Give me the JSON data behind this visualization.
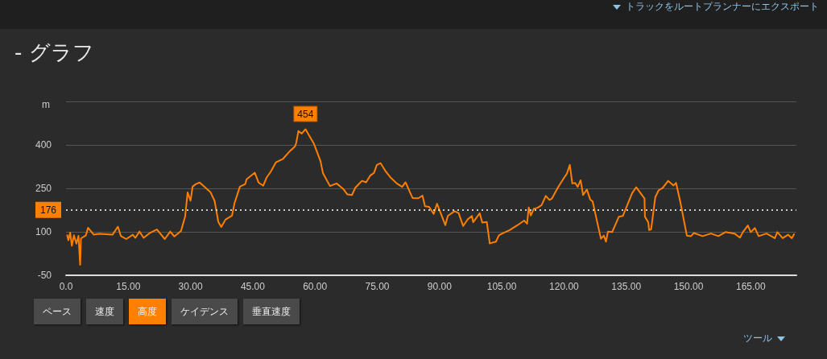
{
  "chart_data": {
    "type": "line",
    "title": "- グラフ",
    "ylabel": "m",
    "annotations": [
      "トラックをルートプランナーにエクスポート",
      "ペース",
      "速度",
      "高度",
      "ケイデンス",
      "垂直速度",
      "ツール",
      {
        "text": "454",
        "x": 57.7,
        "y": 454
      }
    ],
    "x": [
      0.25,
      0.57,
      1.0,
      1.4,
      1.9,
      2.5,
      3.0,
      3.4,
      3.6,
      4.8,
      5.3,
      6.7,
      8.0,
      11.2,
      12.5,
      13.2,
      14.5,
      16.1,
      16.7,
      17.7,
      18.7,
      20.3,
      21.9,
      23.8,
      25.1,
      26.1,
      27.7,
      28.7,
      29.3,
      30.0,
      30.5,
      31.3,
      32.2,
      34.8,
      35.8,
      36.7,
      37.4,
      38.4,
      40.0,
      40.6,
      41.9,
      43.2,
      43.5,
      45.5,
      46.4,
      47.5,
      48.4,
      49.3,
      50.6,
      52.3,
      53.9,
      55.2,
      55.5,
      56.0,
      56.8,
      57.7,
      59.7,
      61.3,
      61.9,
      63.6,
      65.2,
      66.8,
      67.8,
      68.9,
      69.7,
      71.3,
      72.3,
      73.3,
      74.2,
      74.9,
      75.8,
      77.1,
      78.1,
      79.7,
      81.0,
      81.8,
      83.5,
      84.9,
      85.9,
      86.5,
      87.5,
      88.6,
      89.4,
      91.4,
      92.0,
      93.6,
      94.6,
      95.7,
      96.8,
      97.8,
      98.1,
      99.7,
      100.3,
      101.4,
      102.1,
      103.6,
      104.3,
      105.2,
      106.9,
      108.8,
      110.4,
      111.1,
      111.5,
      112.0,
      112.7,
      113.6,
      114.6,
      115.6,
      116.5,
      117.1,
      118.5,
      119.8,
      120.7,
      121.4,
      122.0,
      122.7,
      123.3,
      124.0,
      124.6,
      125.5,
      126.3,
      126.9,
      127.9,
      128.9,
      129.6,
      130.1,
      130.6,
      131.6,
      133.2,
      134.2,
      135.5,
      136.4,
      137.4,
      139.4,
      139.5,
      140.3,
      140.5,
      141.0,
      142.0,
      142.8,
      143.8,
      145.1,
      146.4,
      147.0,
      148.0,
      149.6,
      150.6,
      151.3,
      153.4,
      155.4,
      157.2,
      158.9,
      161.1,
      162.4,
      163.1,
      164.3,
      165.0,
      166.0,
      166.9,
      168.8,
      170.8,
      171.4,
      172.7,
      174.0,
      174.9,
      175.5
    ],
    "values": [
      90,
      71,
      97,
      52,
      88,
      59,
      86,
      -14,
      77,
      88,
      114,
      90,
      93,
      90,
      118,
      86,
      75,
      90,
      79,
      101,
      79,
      97,
      108,
      75,
      101,
      84,
      103,
      153,
      236,
      207,
      256,
      265,
      270,
      237,
      207,
      134,
      117,
      142,
      156,
      199,
      256,
      265,
      281,
      304,
      270,
      259,
      289,
      307,
      340,
      352,
      378,
      395,
      409,
      448,
      439,
      454,
      405,
      345,
      303,
      258,
      267,
      248,
      229,
      227,
      252,
      276,
      271,
      294,
      303,
      331,
      337,
      307,
      289,
      267,
      255,
      271,
      217,
      216,
      225,
      188,
      186,
      162,
      197,
      123,
      155,
      171,
      165,
      120,
      143,
      155,
      133,
      164,
      132,
      134,
      60,
      66,
      88,
      95,
      106,
      123,
      139,
      128,
      184,
      156,
      179,
      183,
      192,
      224,
      210,
      215,
      252,
      282,
      301,
      331,
      267,
      269,
      255,
      278,
      227,
      246,
      212,
      205,
      140,
      76,
      87,
      66,
      101,
      99,
      152,
      155,
      201,
      233,
      254,
      215,
      152,
      133,
      106,
      109,
      220,
      243,
      252,
      276,
      260,
      269,
      205,
      87,
      85,
      96,
      85,
      94,
      85,
      99,
      94,
      80,
      99,
      122,
      99,
      113,
      85,
      94,
      78,
      99,
      78,
      90,
      78,
      94
    ],
    "color": "#ff7f00",
    "marker": "none",
    "grid": "y",
    "xlim": [
      0,
      176
    ],
    "xticks": [
      {
        "value": 0,
        "label": "0.0"
      },
      {
        "value": 15,
        "label": "15.00"
      },
      {
        "value": 30,
        "label": "30.00"
      },
      {
        "value": 45,
        "label": "45.00"
      },
      {
        "value": 60,
        "label": "60.00"
      },
      {
        "value": 75,
        "label": "75.00"
      },
      {
        "value": 90,
        "label": "90.00"
      },
      {
        "value": 105,
        "label": "105.00"
      },
      {
        "value": 120,
        "label": "120.00"
      },
      {
        "value": 135,
        "label": "135.00"
      },
      {
        "value": 150,
        "label": "150.00"
      },
      {
        "value": 165,
        "label": "165.00"
      }
    ],
    "ylim": [
      -50,
      550
    ],
    "yticks": [
      -50,
      100,
      250,
      400,
      {
        "value": 550,
        "label": null
      }
    ],
    "ref_lines": [
      {
        "axis": "y",
        "value": 176,
        "label": "176",
        "color": "#ffffff",
        "line_style": "dotted"
      }
    ]
  }
}
